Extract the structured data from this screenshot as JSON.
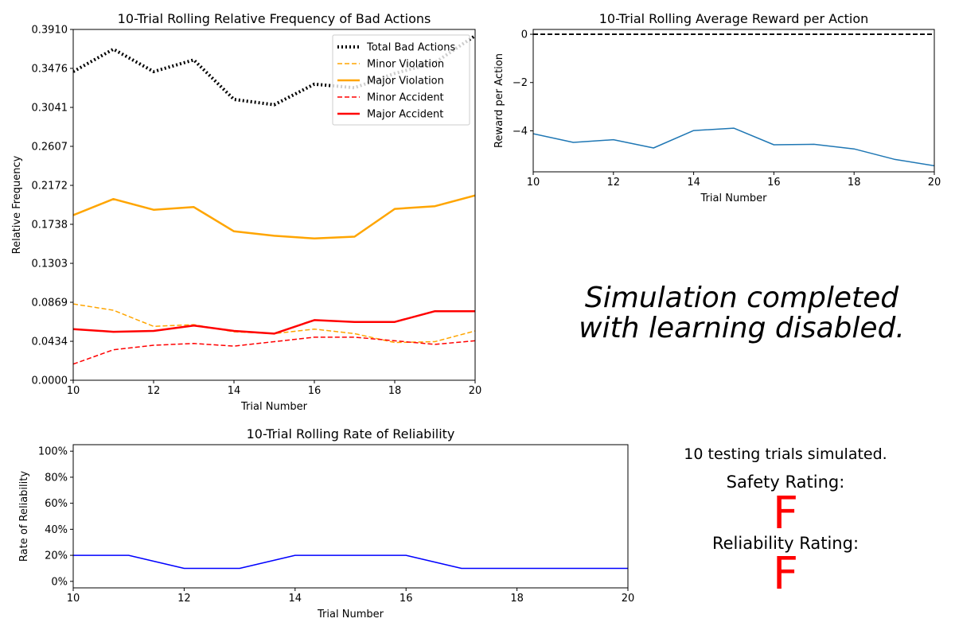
{
  "chart_data": [
    {
      "id": "bad_actions",
      "type": "line",
      "title": "10-Trial Rolling Relative Frequency of Bad Actions",
      "xlabel": "Trial Number",
      "ylabel": "Relative Frequency",
      "xlim": [
        10,
        20
      ],
      "ylim": [
        0,
        0.391
      ],
      "xticks": [
        10,
        12,
        14,
        16,
        18,
        20
      ],
      "yticks": [
        0.0,
        0.0434,
        0.0869,
        0.1303,
        0.1738,
        0.2172,
        0.2607,
        0.3041,
        0.3476,
        0.391
      ],
      "ytick_labels": [
        "0.0000",
        "0.0434",
        "0.0869",
        "0.1303",
        "0.1738",
        "0.2172",
        "0.2607",
        "0.3041",
        "0.3476",
        "0.3910"
      ],
      "grid": false,
      "legend": "top-right",
      "x": [
        10,
        11,
        12,
        13,
        14,
        15,
        16,
        17,
        18,
        19,
        20
      ],
      "series": [
        {
          "name": "Total Bad Actions",
          "color": "#000000",
          "style": "dotted",
          "width": 4,
          "values": [
            0.344,
            0.369,
            0.344,
            0.357,
            0.313,
            0.307,
            0.33,
            0.326,
            0.342,
            0.354,
            0.384
          ]
        },
        {
          "name": "Minor Violation",
          "color": "#ffa500",
          "style": "dashed",
          "width": 1.5,
          "values": [
            0.085,
            0.078,
            0.06,
            0.062,
            0.054,
            0.052,
            0.057,
            0.052,
            0.042,
            0.043,
            0.055
          ]
        },
        {
          "name": "Major Violation",
          "color": "#ffa500",
          "style": "solid",
          "width": 2.5,
          "values": [
            0.184,
            0.202,
            0.19,
            0.193,
            0.166,
            0.161,
            0.158,
            0.16,
            0.191,
            0.194,
            0.206
          ]
        },
        {
          "name": "Minor Accident",
          "color": "#ff0000",
          "style": "dashed",
          "width": 1.5,
          "values": [
            0.018,
            0.034,
            0.039,
            0.041,
            0.038,
            0.043,
            0.048,
            0.048,
            0.044,
            0.04,
            0.044
          ]
        },
        {
          "name": "Major Accident",
          "color": "#ff0000",
          "style": "solid",
          "width": 2.5,
          "values": [
            0.057,
            0.054,
            0.055,
            0.061,
            0.055,
            0.052,
            0.067,
            0.065,
            0.065,
            0.077,
            0.077
          ]
        }
      ]
    },
    {
      "id": "reward",
      "type": "line",
      "title": "10-Trial Rolling Average Reward per Action",
      "xlabel": "Trial Number",
      "ylabel": "Reward per Action",
      "xlim": [
        10,
        20
      ],
      "ylim": [
        -5.7,
        0.2
      ],
      "xticks": [
        10,
        12,
        14,
        16,
        18,
        20
      ],
      "yticks": [
        0,
        -2,
        -4
      ],
      "ytick_labels": [
        "0",
        "−2",
        "−4"
      ],
      "grid": false,
      "reference_line": {
        "y": 0,
        "color": "#000000",
        "style": "dashed"
      },
      "x": [
        10,
        11,
        12,
        13,
        14,
        15,
        16,
        17,
        18,
        19,
        20
      ],
      "series": [
        {
          "color": "#1f77b4",
          "style": "solid",
          "width": 1.5,
          "values": [
            -4.12,
            -4.48,
            -4.37,
            -4.71,
            -3.99,
            -3.89,
            -4.58,
            -4.56,
            -4.75,
            -5.18,
            -5.45
          ]
        }
      ]
    },
    {
      "id": "reliability",
      "type": "line",
      "title": "10-Trial Rolling Rate of Reliability",
      "xlabel": "Trial Number",
      "ylabel": "Rate of Reliability",
      "xlim": [
        10,
        20
      ],
      "ylim": [
        -5,
        105
      ],
      "xticks": [
        10,
        12,
        14,
        16,
        18,
        20
      ],
      "yticks": [
        0,
        20,
        40,
        60,
        80,
        100
      ],
      "ytick_labels": [
        "0%",
        "20%",
        "40%",
        "60%",
        "80%",
        "100%"
      ],
      "grid": false,
      "x": [
        10,
        11,
        12,
        13,
        14,
        15,
        16,
        17,
        18,
        19,
        20
      ],
      "series": [
        {
          "color": "#0000ff",
          "style": "solid",
          "width": 1.5,
          "values": [
            20,
            20,
            10,
            10,
            20,
            20,
            20,
            10,
            10,
            10,
            10
          ]
        }
      ]
    }
  ],
  "note": {
    "line1": "Simulation completed",
    "line2": "with learning disabled."
  },
  "summary": {
    "trials_text": "10 testing trials simulated.",
    "safety_label": "Safety Rating:",
    "safety_grade": "F",
    "safety_color": "#ff0000",
    "reliability_label": "Reliability Rating:",
    "reliability_grade": "F",
    "reliability_color": "#ff0000"
  }
}
